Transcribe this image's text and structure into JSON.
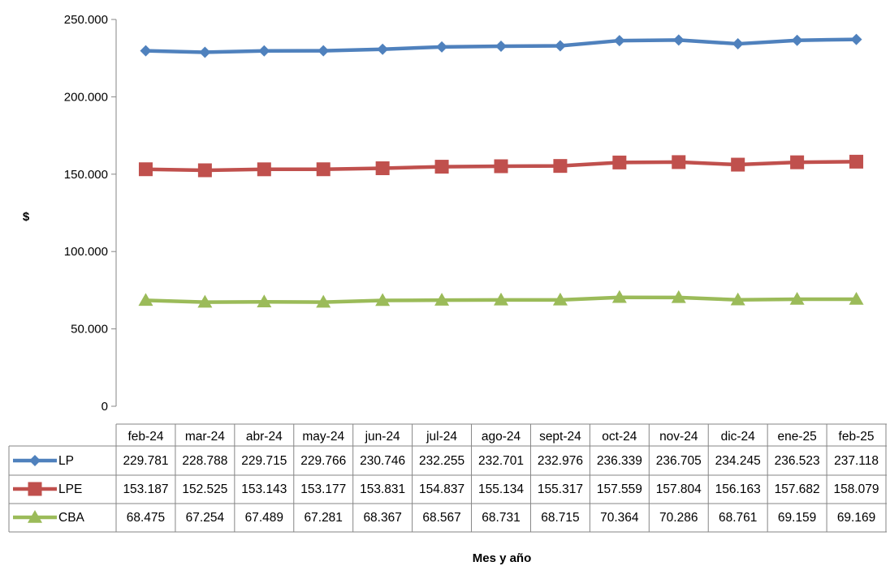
{
  "chart_data": {
    "type": "line",
    "xlabel": "Mes y año",
    "ylabel": "$",
    "ylim": [
      0,
      250000
    ],
    "yticks": [
      0,
      50000,
      100000,
      150000,
      200000,
      250000
    ],
    "ytick_labels": [
      "0",
      "50.000",
      "100.000",
      "150.000",
      "200.000",
      "250.000"
    ],
    "categories": [
      "feb-24",
      "mar-24",
      "abr-24",
      "may-24",
      "jun-24",
      "jul-24",
      "ago-24",
      "sept-24",
      "oct-24",
      "nov-24",
      "dic-24",
      "ene-25",
      "feb-25"
    ],
    "grid": false,
    "legend": "data-table",
    "series": [
      {
        "name": "LP",
        "color": "#4F81BD",
        "marker": "diamond",
        "values": [
          229781,
          228788,
          229715,
          229766,
          230746,
          232255,
          232701,
          232976,
          236339,
          236705,
          234245,
          236523,
          237118
        ],
        "labels": [
          "229.781",
          "228.788",
          "229.715",
          "229.766",
          "230.746",
          "232.255",
          "232.701",
          "232.976",
          "236.339",
          "236.705",
          "234.245",
          "236.523",
          "237.118"
        ]
      },
      {
        "name": "LPE",
        "color": "#C0504D",
        "marker": "square",
        "values": [
          153187,
          152525,
          153143,
          153177,
          153831,
          154837,
          155134,
          155317,
          157559,
          157804,
          156163,
          157682,
          158079
        ],
        "labels": [
          "153.187",
          "152.525",
          "153.143",
          "153.177",
          "153.831",
          "154.837",
          "155.134",
          "155.317",
          "157.559",
          "157.804",
          "156.163",
          "157.682",
          "158.079"
        ]
      },
      {
        "name": "CBA",
        "color": "#9BBB59",
        "marker": "triangle",
        "values": [
          68475,
          67254,
          67489,
          67281,
          68367,
          68567,
          68731,
          68715,
          70364,
          70286,
          68761,
          69159,
          69169
        ],
        "labels": [
          "68.475",
          "67.254",
          "67.489",
          "67.281",
          "68.367",
          "68.567",
          "68.731",
          "68.715",
          "70.364",
          "70.286",
          "68.761",
          "69.159",
          "69.169"
        ]
      }
    ]
  }
}
